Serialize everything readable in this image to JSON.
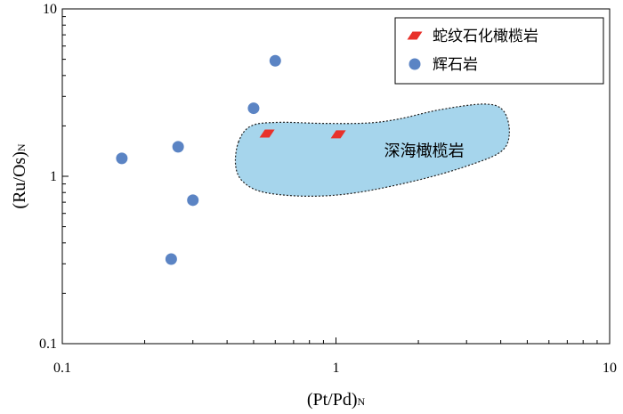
{
  "chart_data": {
    "type": "scatter",
    "x_scale": "log",
    "y_scale": "log",
    "xlim": [
      0.1,
      10
    ],
    "ylim": [
      0.1,
      10
    ],
    "x_ticks": [
      "0.1",
      "1",
      "10"
    ],
    "y_ticks": [
      "0.1",
      "1",
      "10"
    ],
    "xlabel": {
      "main": "(Pt/Pd)",
      "sub": "N"
    },
    "ylabel": {
      "main": "(Ru/Os)",
      "sub": "N"
    },
    "grid": false,
    "legend_position": "top-right",
    "series": [
      {
        "name": "蛇纹石化橄榄岩",
        "marker": "parallelogram",
        "color": "#e8312a",
        "points": [
          {
            "x": 0.56,
            "y": 1.8
          },
          {
            "x": 1.02,
            "y": 1.78
          }
        ]
      },
      {
        "name": "辉石岩",
        "marker": "circle",
        "color": "#5b84c4",
        "points": [
          {
            "x": 0.165,
            "y": 1.28
          },
          {
            "x": 0.265,
            "y": 1.5
          },
          {
            "x": 0.3,
            "y": 0.72
          },
          {
            "x": 0.25,
            "y": 0.32
          },
          {
            "x": 0.5,
            "y": 2.55
          },
          {
            "x": 0.6,
            "y": 4.9
          }
        ]
      }
    ],
    "regions": [
      {
        "label": "深海橄榄岩",
        "fill": "#a6d5ec",
        "stroke": "#222222",
        "label_at": {
          "x": 2.1,
          "y": 1.42
        },
        "outline": [
          {
            "x": 0.44,
            "y": 1.6
          },
          {
            "x": 0.49,
            "y": 2.0
          },
          {
            "x": 0.62,
            "y": 2.1
          },
          {
            "x": 0.9,
            "y": 2.07
          },
          {
            "x": 1.3,
            "y": 2.08
          },
          {
            "x": 1.7,
            "y": 2.2
          },
          {
            "x": 2.4,
            "y": 2.5
          },
          {
            "x": 3.5,
            "y": 2.7
          },
          {
            "x": 4.1,
            "y": 2.45
          },
          {
            "x": 4.3,
            "y": 1.8
          },
          {
            "x": 4.0,
            "y": 1.4
          },
          {
            "x": 3.0,
            "y": 1.15
          },
          {
            "x": 2.0,
            "y": 0.95
          },
          {
            "x": 1.2,
            "y": 0.8
          },
          {
            "x": 0.8,
            "y": 0.76
          },
          {
            "x": 0.55,
            "y": 0.8
          },
          {
            "x": 0.46,
            "y": 0.92
          },
          {
            "x": 0.43,
            "y": 1.15
          }
        ]
      }
    ]
  }
}
